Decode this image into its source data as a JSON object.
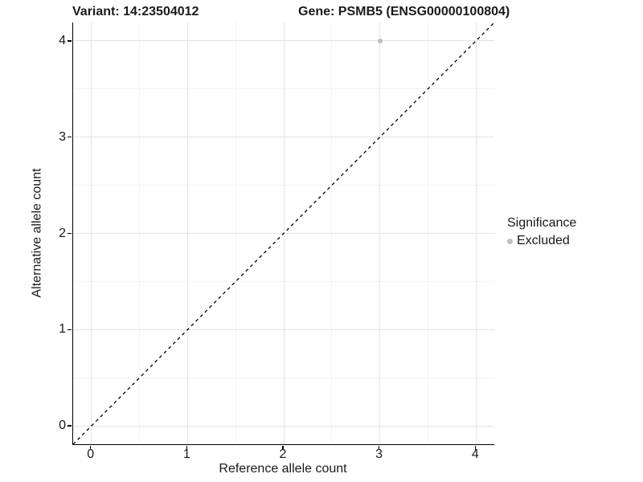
{
  "chart_data": {
    "type": "scatter",
    "title_left": "Variant: 14:23504012",
    "title_right": "Gene: PSMB5 (ENSG00000100804)",
    "xlabel": "Reference allele count",
    "ylabel": "Alternative allele count",
    "xlim": [
      -0.19,
      4.19
    ],
    "ylim": [
      -0.19,
      4.19
    ],
    "x_ticks": [
      0,
      1,
      2,
      3,
      4
    ],
    "y_ticks": [
      0,
      1,
      2,
      3,
      4
    ],
    "x_minor_ticks": [
      0.5,
      1.5,
      2.5,
      3.5
    ],
    "y_minor_ticks": [
      0.5,
      1.5,
      2.5,
      3.5
    ],
    "grid": true,
    "points": [
      {
        "x": 3,
        "y": 4,
        "series": "Excluded",
        "color": "#bebebe"
      }
    ],
    "reference_line": {
      "kind": "identity",
      "style": "dashed",
      "color": "#000000"
    },
    "legend": {
      "title": "Significance",
      "position": "right",
      "entries": [
        {
          "label": "Excluded",
          "color": "#bebebe"
        }
      ]
    }
  },
  "colors": {
    "background": "#ffffff",
    "grid_major": "#e4e4e4",
    "grid_minor": "#f2f2f2",
    "axis_line": "#000000",
    "point_excluded": "#bebebe",
    "text": "#1a1a1a"
  }
}
